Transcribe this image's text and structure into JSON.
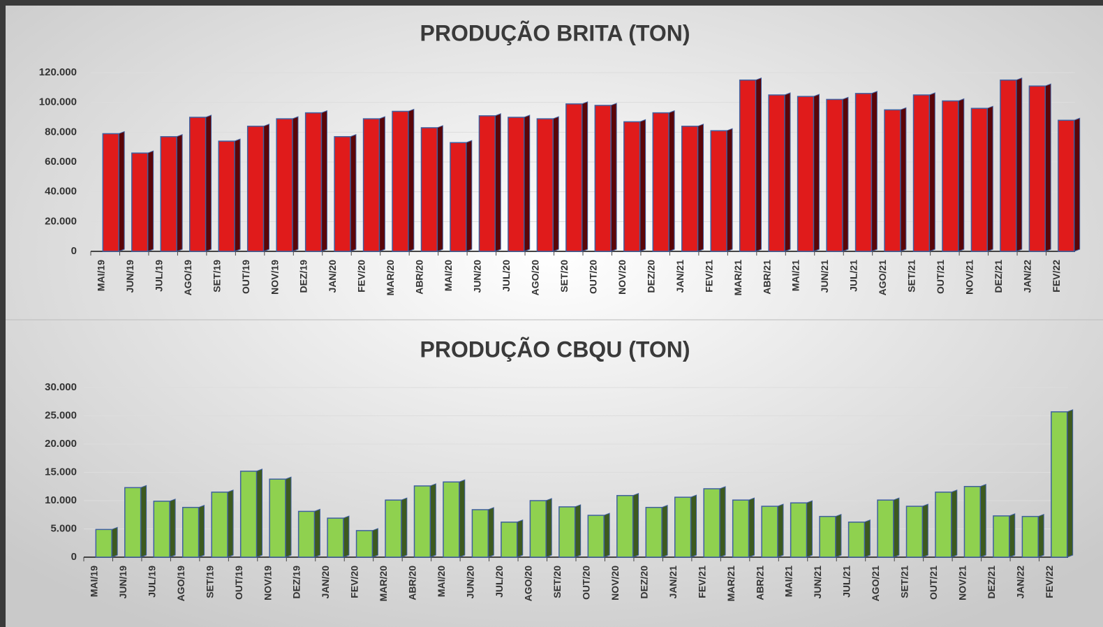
{
  "chart_data": [
    {
      "type": "bar",
      "title": "PRODUÇÃO BRITA (TON)",
      "color": "#e01b1b",
      "side_color": "#5a0508",
      "categories": [
        "MAI/19",
        "JUN/19",
        "JUL/19",
        "AGO/19",
        "SET/19",
        "OUT/19",
        "NOV/19",
        "DEZ/19",
        "JAN/20",
        "FEV/20",
        "MAR/20",
        "ABR/20",
        "MAI/20",
        "JUN/20",
        "JUL/20",
        "AGO/20",
        "SET/20",
        "OUT/20",
        "NOV/20",
        "DEZ/20",
        "JAN/21",
        "FEV/21",
        "MAR/21",
        "ABR/21",
        "MAI/21",
        "JUN/21",
        "JUL/21",
        "AGO/21",
        "SET/21",
        "OUT/21",
        "NOV/21",
        "DEZ/21",
        "JAN/22",
        "FEV/22"
      ],
      "values": [
        79000,
        66000,
        77000,
        90000,
        74000,
        84000,
        89000,
        93000,
        77000,
        89000,
        94000,
        83000,
        73000,
        91000,
        90000,
        89000,
        99000,
        98000,
        87000,
        93000,
        84000,
        81000,
        115000,
        105000,
        104000,
        102000,
        106000,
        95000,
        105000,
        101000,
        96000,
        115000,
        111000,
        88000
      ],
      "ylim": [
        0,
        120000
      ],
      "yticks": [
        0,
        {
          "value": 20000,
          "label": "20.000"
        },
        {
          "value": 40000,
          "label": "40.000"
        },
        {
          "value": 60000,
          "label": "60.000"
        },
        {
          "value": 80000,
          "label": "80.000"
        },
        {
          "value": 100000,
          "label": "100.000"
        },
        {
          "value": 120000,
          "label": "120.000"
        }
      ],
      "grid": true
    },
    {
      "type": "bar",
      "title": "PRODUÇÃO CBQU (TON)",
      "color": "#8fd14f",
      "side_color": "#3d5a1f",
      "categories": [
        "MAI/19",
        "JUN/19",
        "JUL/19",
        "AGO/19",
        "SET/19",
        "OUT/19",
        "NOV/19",
        "DEZ/19",
        "JAN/20",
        "FEV/20",
        "MAR/20",
        "ABR/20",
        "MAI/20",
        "JUN/20",
        "JUL/20",
        "AGO/20",
        "SET/20",
        "OUT/20",
        "NOV/20",
        "DEZ/20",
        "JAN/21",
        "FEV/21",
        "MAR/21",
        "ABR/21",
        "MAI/21",
        "JUN/21",
        "JUL/21",
        "AGO/21",
        "SET/21",
        "OUT/21",
        "NOV/21",
        "DEZ/21",
        "JAN/22",
        "FEV/22"
      ],
      "values": [
        4900,
        12300,
        9900,
        8800,
        11500,
        15200,
        13800,
        8100,
        6900,
        4700,
        10100,
        12600,
        13300,
        8400,
        6200,
        10000,
        8900,
        7400,
        10900,
        8800,
        10600,
        12100,
        10100,
        9000,
        9600,
        7200,
        6200,
        10100,
        9000,
        11500,
        12500,
        7300,
        7200,
        25700
      ],
      "ylim": [
        0,
        30000
      ],
      "yticks": [
        0,
        {
          "value": 5000,
          "label": "5.000"
        },
        {
          "value": 10000,
          "label": "10.000"
        },
        {
          "value": 15000,
          "label": "15.000"
        },
        {
          "value": 20000,
          "label": "20.000"
        },
        {
          "value": 25000,
          "label": "25.000"
        },
        {
          "value": 30000,
          "label": "30.000"
        }
      ],
      "grid": true
    }
  ]
}
